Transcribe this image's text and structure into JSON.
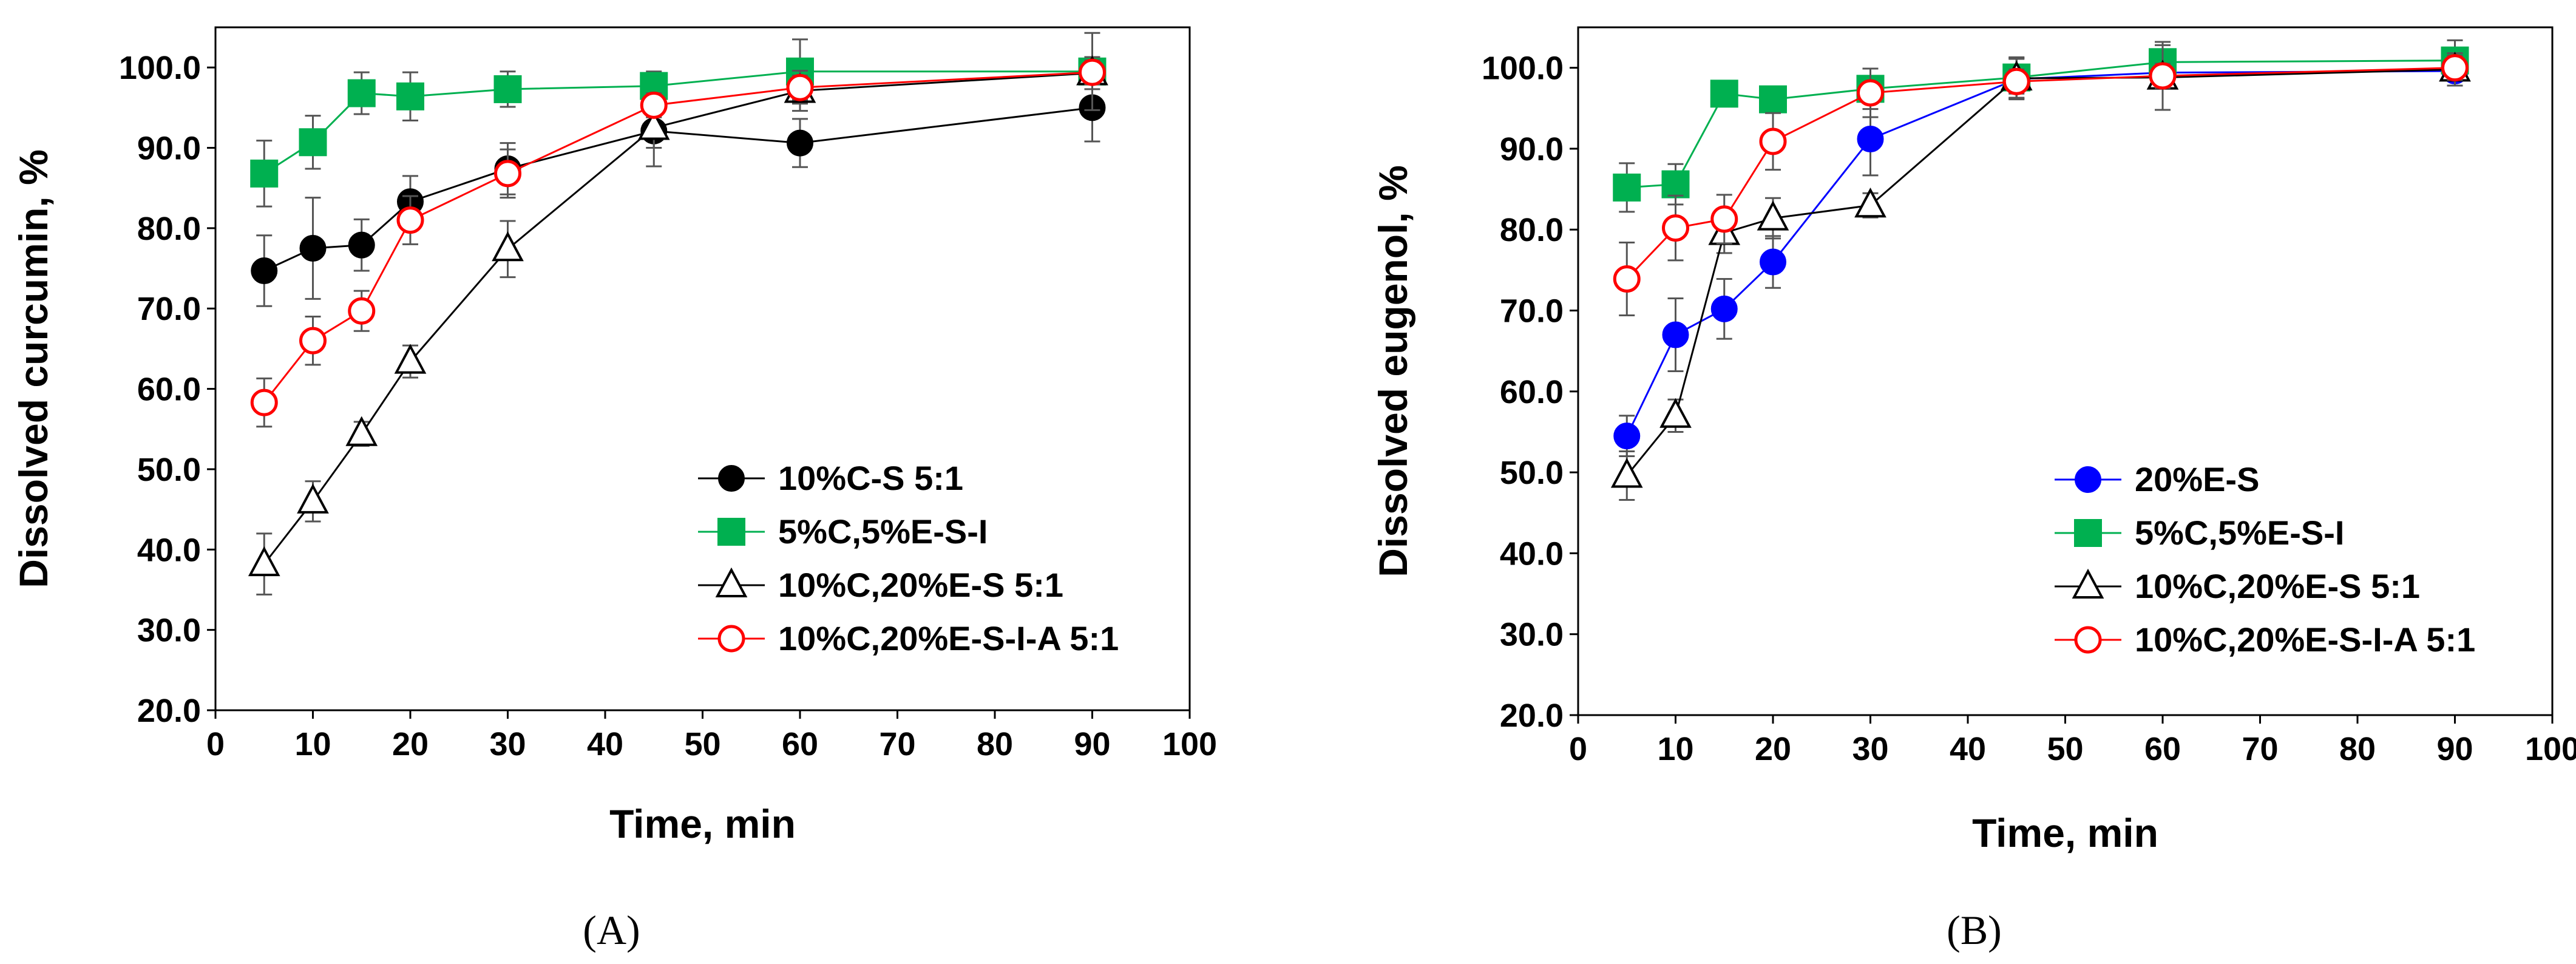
{
  "chart_data": [
    {
      "type": "line",
      "panel": "(A)",
      "xlabel": "Time, min",
      "ylabel": "Dissolved curcumin, %",
      "xlim": [
        0,
        100
      ],
      "ylim": [
        20,
        105
      ],
      "xticks": [
        "0",
        "10",
        "20",
        "30",
        "40",
        "50",
        "60",
        "70",
        "80",
        "90",
        "100"
      ],
      "yticks": [
        "20.0",
        "30.0",
        "40.0",
        "50.0",
        "60.0",
        "70.0",
        "80.0",
        "90.0",
        "100.0"
      ],
      "legend_position": "bottom-right",
      "series": [
        {
          "name": "10%C-S 5:1",
          "color": "#000000",
          "marker": "circle-filled",
          "x": [
            5,
            10,
            15,
            20,
            30,
            45,
            60,
            90
          ],
          "y": [
            74.7,
            77.5,
            77.9,
            83.3,
            87.4,
            92.1,
            90.6,
            95.0
          ],
          "err": [
            4.4,
            6.3,
            3.2,
            3.2,
            3.2,
            4.4,
            3.0,
            4.2
          ]
        },
        {
          "name": "5%C,5%E-S-I",
          "color": "#00B050",
          "marker": "square-filled",
          "x": [
            5,
            10,
            15,
            20,
            30,
            45,
            60,
            90
          ],
          "y": [
            86.8,
            90.7,
            96.8,
            96.4,
            97.3,
            97.7,
            99.5,
            99.5
          ],
          "err": [
            4.1,
            3.3,
            2.6,
            3.0,
            2.2,
            1.8,
            4.0,
            4.8
          ]
        },
        {
          "name": "10%C,20%E-S 5:1",
          "color": "#000000",
          "marker": "triangle-open",
          "x": [
            5,
            10,
            15,
            20,
            30,
            45,
            60,
            90
          ],
          "y": [
            38.2,
            46.0,
            54.4,
            63.4,
            77.4,
            92.5,
            97.1,
            99.3
          ],
          "err": [
            3.8,
            2.5,
            1.5,
            2.0,
            3.5,
            2.5,
            2.5,
            2.0
          ]
        },
        {
          "name": "10%C,20%E-S-I-A 5:1",
          "color": "#FF0000",
          "marker": "circle-open",
          "x": [
            5,
            10,
            15,
            20,
            30,
            45,
            60,
            90
          ],
          "y": [
            58.3,
            66.0,
            69.7,
            81.0,
            86.8,
            95.3,
            97.5,
            99.4
          ],
          "err": [
            3.0,
            3.0,
            2.5,
            3.0,
            3.0,
            1.5,
            1.5,
            1.5
          ]
        }
      ]
    },
    {
      "type": "line",
      "panel": "(B)",
      "xlabel": "Time, min",
      "ylabel": "Dissolved eugenol, %",
      "xlim": [
        0,
        100
      ],
      "ylim": [
        20,
        105
      ],
      "xticks": [
        "0",
        "10",
        "20",
        "30",
        "40",
        "50",
        "60",
        "70",
        "80",
        "90",
        "100"
      ],
      "yticks": [
        "20.0",
        "30.0",
        "40.0",
        "50.0",
        "60.0",
        "70.0",
        "80.0",
        "90.0",
        "100.0"
      ],
      "legend_position": "bottom-right",
      "series": [
        {
          "name": "20%E-S",
          "color": "#0000FF",
          "marker": "circle-filled",
          "x": [
            5,
            10,
            15,
            20,
            30,
            45,
            60,
            90
          ],
          "y": [
            54.5,
            67.0,
            70.2,
            76.0,
            91.2,
            98.6,
            99.4,
            99.6
          ],
          "err": [
            2.5,
            4.5,
            3.7,
            3.2,
            4.5,
            2.5,
            1.5,
            1.2
          ]
        },
        {
          "name": "5%C,5%E-S-I",
          "color": "#00B050",
          "marker": "square-filled",
          "x": [
            5,
            10,
            15,
            20,
            30,
            45,
            60,
            90
          ],
          "y": [
            85.2,
            85.6,
            96.8,
            96.1,
            97.4,
            98.8,
            100.7,
            100.9
          ],
          "err": [
            3.0,
            2.5,
            1.5,
            1.5,
            2.5,
            2.5,
            2.5,
            2.5
          ]
        },
        {
          "name": "10%C,20%E-S 5:1",
          "color": "#000000",
          "marker": "triangle-open",
          "x": [
            5,
            10,
            15,
            20,
            30,
            45,
            60,
            90
          ],
          "y": [
            49.6,
            57.0,
            79.6,
            81.4,
            83.0,
            98.7,
            98.8,
            99.8
          ],
          "err": [
            3.0,
            2.0,
            2.5,
            2.5,
            1.5,
            2.5,
            4.0,
            2.0
          ]
        },
        {
          "name": "10%C,20%E-S-I-A 5:1",
          "color": "#FF0000",
          "marker": "circle-open",
          "x": [
            5,
            10,
            15,
            20,
            30,
            45,
            60,
            90
          ],
          "y": [
            73.9,
            80.2,
            81.3,
            90.9,
            96.9,
            98.3,
            99.0,
            100.0
          ],
          "err": [
            4.5,
            4.0,
            3.0,
            3.5,
            3.0,
            1.5,
            1.5,
            1.5
          ]
        }
      ]
    }
  ]
}
